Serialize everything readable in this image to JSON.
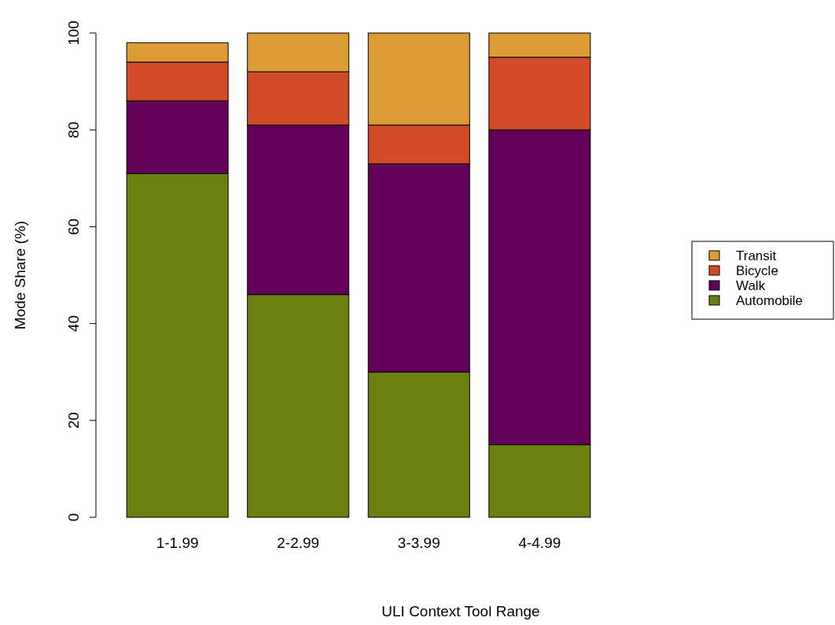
{
  "chart_data": {
    "type": "bar",
    "stacked": true,
    "xlabel": "ULI Context Tool Range",
    "ylabel": "Mode Share (%)",
    "categories": [
      "1-1.99",
      "2-2.99",
      "3-3.99",
      "4-4.99"
    ],
    "series": [
      {
        "name": "Automobile",
        "color": "#6b7f12",
        "values": [
          71,
          46,
          30,
          15
        ]
      },
      {
        "name": "Walk",
        "color": "#630058",
        "values": [
          15,
          35,
          43,
          65
        ]
      },
      {
        "name": "Bicycle",
        "color": "#d24b28",
        "values": [
          8,
          11,
          8,
          15
        ]
      },
      {
        "name": "Transit",
        "color": "#dc9b35",
        "values": [
          4,
          8,
          19,
          5
        ]
      }
    ],
    "ylim": [
      0,
      100
    ],
    "yticks": [
      0,
      20,
      40,
      60,
      80,
      100
    ],
    "legend": "right",
    "grid": false
  }
}
